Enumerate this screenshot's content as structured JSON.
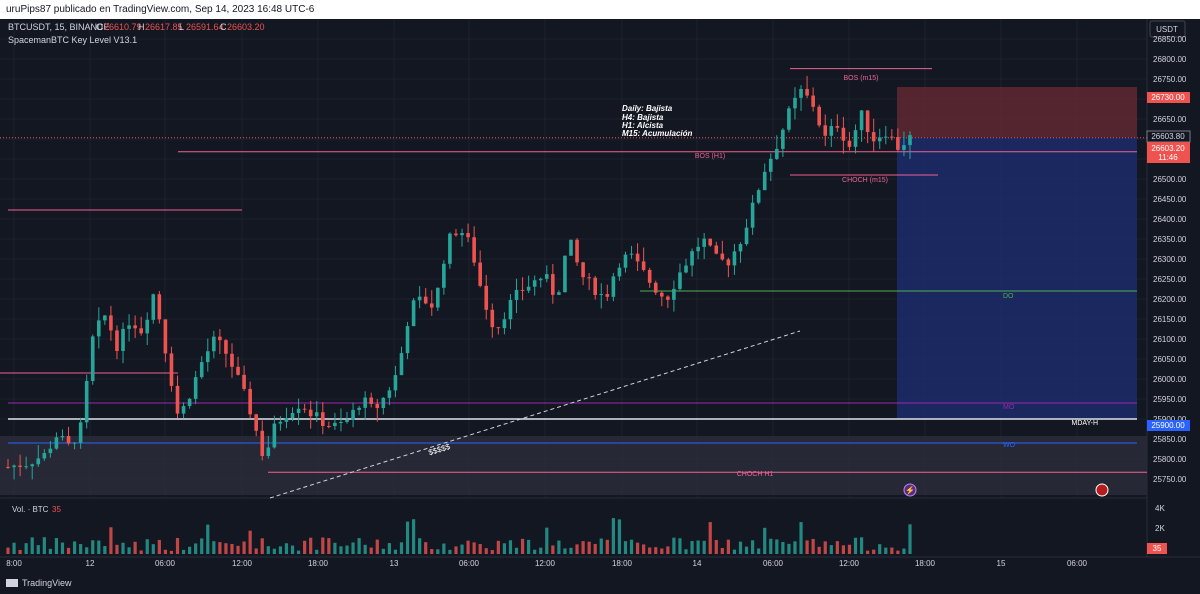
{
  "topbar": {
    "text": "uruPips87 publicado en TradingView.com, Sep 14, 2023 16:48 UTC-6"
  },
  "header": {
    "symbol": "BTCUSDT, 15, BINANCE",
    "ohlc": [
      {
        "k": "O",
        "v": "26610.79"
      },
      {
        "k": "H",
        "v": "26617.85"
      },
      {
        "k": "L",
        "v": "26591.64"
      },
      {
        "k": "C",
        "v": "26603.20"
      }
    ],
    "indicator": "SpacemanBTC Key Level V13.1",
    "currency": "USDT"
  },
  "bias_note": [
    "Daily: Bajista",
    "H4: Bajista",
    "H1: Alcista",
    "M15: Acumulación"
  ],
  "labels": {
    "bos_m15": "BOS (m15)",
    "bos_h1": "BOS (H1)",
    "choch_m15": "CHOCH (m15)",
    "choch_h1": "CHOCH H1",
    "ssl": "$$$$$",
    "do": "DO",
    "mo": "MO",
    "wo": "WO",
    "mday_h": "MDAY-H"
  },
  "price_tags": {
    "tp": "26730.00",
    "last": "26603.80",
    "current": "26603.20",
    "countdown": "11:46",
    "stop": "25900.00"
  },
  "volume": {
    "label": "Vol. · BTC",
    "value": "35",
    "axis": [
      "4K",
      "2K"
    ]
  },
  "branding": "TradingView",
  "colors": {
    "up": "#26a69a",
    "down": "#ef5350",
    "pink": "#f06292",
    "green": "#4caf50",
    "purple": "#9c27b0",
    "blue": "#2962ff"
  },
  "chart_data": {
    "type": "candlestick",
    "title": "BTCUSDT, 15, BINANCE",
    "y_ticks": [
      26850,
      26800,
      26750,
      26700,
      26650,
      26600,
      26550,
      26500,
      26450,
      26400,
      26350,
      26300,
      26250,
      26200,
      26150,
      26100,
      26050,
      26000,
      25950,
      25900,
      25850,
      25800,
      25750
    ],
    "ylim": [
      25710,
      26900
    ],
    "x_ticks": [
      "8:00",
      "12",
      "06:00",
      "12:00",
      "18:00",
      "13",
      "06:00",
      "12:00",
      "18:00",
      "14",
      "06:00",
      "12:00",
      "18:00",
      "15",
      "06:00"
    ],
    "levels": [
      {
        "name": "BOS (m15)",
        "price": 26776
      },
      {
        "name": "BOS (H1)",
        "price": 26568
      },
      {
        "name": "CHOCH (m15)",
        "price": 26510
      },
      {
        "name": "DO",
        "price": 26220
      },
      {
        "name": "MO",
        "price": 25940
      },
      {
        "name": "MDAY-H",
        "price": 25900
      },
      {
        "name": "WO",
        "price": 25840
      },
      {
        "name": "CHOCH H1",
        "price": 25767
      }
    ],
    "position": {
      "entry": 26603.2,
      "take_profit": 26730.0,
      "stop": 25900.0
    },
    "candle_path": [
      [
        0,
        25780
      ],
      [
        3,
        25790
      ],
      [
        6,
        25810
      ],
      [
        8,
        25860
      ],
      [
        10,
        25830
      ],
      [
        12,
        25880
      ],
      [
        14,
        26110
      ],
      [
        16,
        26160
      ],
      [
        18,
        26080
      ],
      [
        20,
        26150
      ],
      [
        22,
        26120
      ],
      [
        24,
        26220
      ],
      [
        26,
        26060
      ],
      [
        28,
        25900
      ],
      [
        30,
        25970
      ],
      [
        32,
        26050
      ],
      [
        34,
        26100
      ],
      [
        36,
        26060
      ],
      [
        38,
        25990
      ],
      [
        40,
        25910
      ],
      [
        42,
        25800
      ],
      [
        44,
        25890
      ],
      [
        46,
        25920
      ],
      [
        48,
        25940
      ],
      [
        50,
        25910
      ],
      [
        52,
        25890
      ],
      [
        54,
        25880
      ],
      [
        56,
        25900
      ],
      [
        58,
        25950
      ],
      [
        60,
        25920
      ],
      [
        62,
        25960
      ],
      [
        64,
        26020
      ],
      [
        66,
        26180
      ],
      [
        68,
        26200
      ],
      [
        70,
        26180
      ],
      [
        72,
        26340
      ],
      [
        74,
        26380
      ],
      [
        76,
        26330
      ],
      [
        78,
        26200
      ],
      [
        80,
        26120
      ],
      [
        82,
        26180
      ],
      [
        84,
        26220
      ],
      [
        86,
        26240
      ],
      [
        88,
        26260
      ],
      [
        90,
        26200
      ],
      [
        92,
        26350
      ],
      [
        94,
        26260
      ],
      [
        96,
        26230
      ],
      [
        98,
        26200
      ],
      [
        100,
        26290
      ],
      [
        102,
        26310
      ],
      [
        104,
        26270
      ],
      [
        106,
        26230
      ],
      [
        108,
        26200
      ],
      [
        110,
        26260
      ],
      [
        112,
        26310
      ],
      [
        114,
        26350
      ],
      [
        116,
        26300
      ],
      [
        118,
        26290
      ],
      [
        120,
        26340
      ],
      [
        122,
        26420
      ],
      [
        124,
        26520
      ],
      [
        126,
        26580
      ],
      [
        128,
        26660
      ],
      [
        130,
        26720
      ],
      [
        132,
        26690
      ],
      [
        134,
        26600
      ],
      [
        136,
        26640
      ],
      [
        138,
        26580
      ],
      [
        140,
        26660
      ],
      [
        142,
        26600
      ],
      [
        144,
        26620
      ],
      [
        146,
        26580
      ],
      [
        148,
        26603
      ]
    ]
  }
}
